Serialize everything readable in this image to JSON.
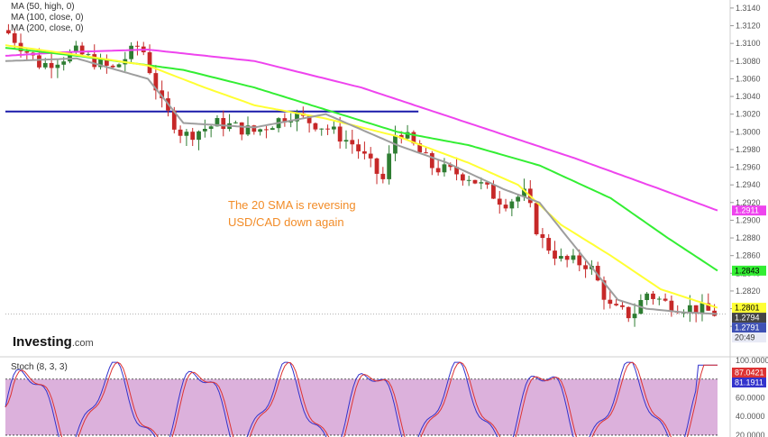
{
  "legend": [
    {
      "label": "MA (50, high, 0)"
    },
    {
      "label": "MA (100, close, 0)"
    },
    {
      "label": "MA (200, close, 0)"
    }
  ],
  "logo": {
    "brand": "Investing",
    "domain": ".com"
  },
  "annotation": {
    "line1": "The 20 SMA is reversing",
    "line2": "USD/CAD down again"
  },
  "stoch": {
    "title": "Stoch (8, 3, 3)"
  },
  "colors": {
    "up": "#2e7d32",
    "down": "#c62828",
    "wick": "#444444",
    "ma20": "#9e9e9e",
    "ma50": "#ffff33",
    "ma100": "#33ee33",
    "ma200": "#ee44ee",
    "level": "#1a1aaa",
    "k": "#3333cc",
    "d": "#dd3333",
    "zone": "#d8a8d8"
  },
  "chart_data": [
    {
      "type": "candlestick",
      "title": "",
      "ylim": [
        1.277,
        1.3145
      ],
      "y_ticks": [
        "1.3140",
        "1.3120",
        "1.3100",
        "1.3080",
        "1.3060",
        "1.3040",
        "1.3020",
        "1.3000",
        "1.2980",
        "1.2960",
        "1.2940",
        "1.2920",
        "1.2900",
        "1.2880",
        "1.2860",
        "1.2840",
        "1.2820",
        "1.2800",
        "1.2780"
      ],
      "price_labels": [
        {
          "text": "1.2911",
          "value": 1.2911,
          "color": "#ee44ee",
          "text_color": "#ffffff"
        },
        {
          "text": "1.2843",
          "value": 1.2843,
          "color": "#33ee33",
          "text_color": "#000000"
        },
        {
          "text": "1.2801",
          "value": 1.2801,
          "color": "#ffff33",
          "text_color": "#000000"
        },
        {
          "text": "1.2794",
          "value": 1.2794,
          "color": "#444444",
          "text_color": "#ffffff"
        },
        {
          "text": "1.2791",
          "value": 1.2791,
          "color": "#3f51b5",
          "text_color": "#ffffff"
        },
        {
          "text": "20:49",
          "value": 1.2782,
          "color": "#e8eaf6",
          "text_color": "#333333"
        }
      ],
      "horizontal_line": {
        "value": 1.3023
      },
      "current_price": 1.2794,
      "ma_anchors": {
        "ma200": [
          [
            0,
            1.3086
          ],
          [
            0.08,
            1.309
          ],
          [
            0.2,
            1.3093
          ],
          [
            0.35,
            1.308
          ],
          [
            0.5,
            1.305
          ],
          [
            0.65,
            1.301
          ],
          [
            0.8,
            1.297
          ],
          [
            0.92,
            1.2935
          ],
          [
            1,
            1.2911
          ]
        ],
        "ma100": [
          [
            0,
            1.3095
          ],
          [
            0.1,
            1.3086
          ],
          [
            0.25,
            1.307
          ],
          [
            0.35,
            1.305
          ],
          [
            0.45,
            1.3025
          ],
          [
            0.55,
            1.3
          ],
          [
            0.65,
            1.2985
          ],
          [
            0.75,
            1.2962
          ],
          [
            0.85,
            1.2925
          ],
          [
            0.93,
            1.288
          ],
          [
            1,
            1.2843
          ]
        ],
        "ma50": [
          [
            0,
            1.3098
          ],
          [
            0.1,
            1.3087
          ],
          [
            0.2,
            1.3075
          ],
          [
            0.28,
            1.305
          ],
          [
            0.35,
            1.303
          ],
          [
            0.45,
            1.3015
          ],
          [
            0.55,
            1.2995
          ],
          [
            0.65,
            1.2965
          ],
          [
            0.72,
            1.294
          ],
          [
            0.78,
            1.2895
          ],
          [
            0.85,
            1.286
          ],
          [
            0.92,
            1.2822
          ],
          [
            1,
            1.2801
          ]
        ],
        "ma20": [
          [
            0,
            1.308
          ],
          [
            0.1,
            1.3083
          ],
          [
            0.2,
            1.306
          ],
          [
            0.25,
            1.301
          ],
          [
            0.35,
            1.3005
          ],
          [
            0.45,
            1.302
          ],
          [
            0.55,
            1.2985
          ],
          [
            0.62,
            1.2965
          ],
          [
            0.7,
            1.2935
          ],
          [
            0.75,
            1.292
          ],
          [
            0.8,
            1.287
          ],
          [
            0.86,
            1.281
          ],
          [
            0.9,
            1.28
          ],
          [
            0.95,
            1.2796
          ],
          [
            1,
            1.2794
          ]
        ]
      },
      "price_anchors": [
        [
          0,
          1.3115
        ],
        [
          0.05,
          1.3075
        ],
        [
          0.1,
          1.309
        ],
        [
          0.15,
          1.307
        ],
        [
          0.19,
          1.31
        ],
        [
          0.22,
          1.303
        ],
        [
          0.25,
          1.2995
        ],
        [
          0.3,
          1.301
        ],
        [
          0.35,
          1.3
        ],
        [
          0.4,
          1.302
        ],
        [
          0.45,
          1.3005
        ],
        [
          0.49,
          1.2985
        ],
        [
          0.53,
          1.2945
        ],
        [
          0.55,
          1.3005
        ],
        [
          0.6,
          1.296
        ],
        [
          0.65,
          1.295
        ],
        [
          0.7,
          1.292
        ],
        [
          0.73,
          1.293
        ],
        [
          0.75,
          1.288
        ],
        [
          0.78,
          1.2855
        ],
        [
          0.82,
          1.285
        ],
        [
          0.85,
          1.28
        ],
        [
          0.88,
          1.2792
        ],
        [
          0.9,
          1.2818
        ],
        [
          0.93,
          1.2805
        ],
        [
          0.97,
          1.28
        ],
        [
          1,
          1.2794
        ]
      ],
      "candle_count": 116
    },
    {
      "type": "line",
      "title": "Stoch (8, 3, 3)",
      "ylim": [
        18,
        102
      ],
      "y_ticks": [
        "100.0000",
        "80.0000",
        "60.0000",
        "40.0000",
        "20.0000"
      ],
      "levels": [
        80,
        20
      ],
      "value_labels": [
        {
          "text": "87.0421",
          "value": 87.0421,
          "color": "#dd3333"
        },
        {
          "text": "81.1911",
          "value": 81.1911,
          "color": "#3333cc"
        }
      ]
    }
  ]
}
